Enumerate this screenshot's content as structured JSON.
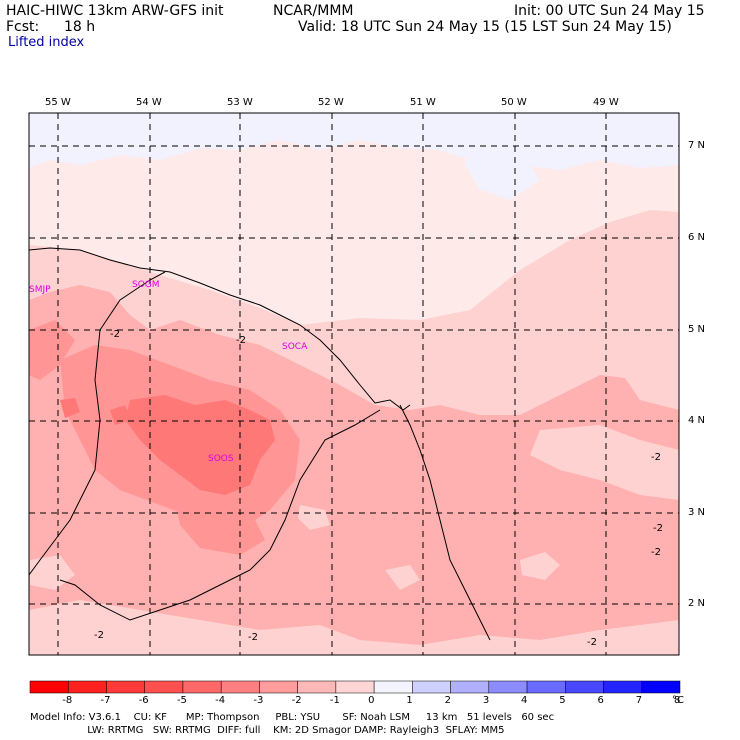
{
  "header": {
    "title_left": "HAIC-HIWC 13km ARW-GFS init",
    "title_center": "NCAR/MMM",
    "init": "Init: 00 UTC Sun 24 May 15",
    "fcst_label": "Fcst:",
    "fcst_value": "18 h",
    "valid": "Valid: 18 UTC Sun 24 May 15 (15 LST Sun 24 May 15)",
    "field": "Lifted index"
  },
  "map": {
    "lon_labels": [
      "55 W",
      "54 W",
      "53 W",
      "52 W",
      "51 W",
      "50 W",
      "49 W"
    ],
    "lat_labels": [
      "7 N",
      "6 N",
      "5 N",
      "4 N",
      "3 N",
      "2 N"
    ],
    "stations": [
      "SMJP",
      "SOGM",
      "SOCA",
      "SOOS"
    ],
    "contour_label": "-2",
    "colors": {
      "weak_pos": "#f2f2ff",
      "zero_to_neg1": "#ffeaea",
      "neg1_to_neg2": "#ffd2d2",
      "neg2_to_neg3": "#ffb0b0",
      "neg3_to_neg4": "#ff9595",
      "neg4_to_neg5": "#ff7878",
      "station": "#e000e0"
    }
  },
  "colorbar": {
    "ticks": [
      "-8",
      "-7",
      "-6",
      "-5",
      "-4",
      "-3",
      "-2",
      "-1",
      "0",
      "1",
      "2",
      "3",
      "4",
      "5",
      "6",
      "7",
      "8"
    ],
    "unit": "°C",
    "colors": [
      "#ff0000",
      "#ff2020",
      "#ff3a3a",
      "#ff5050",
      "#ff6868",
      "#ff8080",
      "#ff9c9c",
      "#ffb8b8",
      "#ffd4d4",
      "#f4f4ff",
      "#d0d0ff",
      "#b0b0ff",
      "#8c8cff",
      "#6a6aff",
      "#4848ff",
      "#2424ff",
      "#0000ff"
    ]
  },
  "footer": {
    "line1": "Model Info: V3.6.1    CU: KF      MP: Thompson     PBL: YSU       SF: Noah LSM     13 km   51 levels   60 sec",
    "line2": "                  LW: RRTMG   SW: RRTMG  DIFF: full    KM: 2D Smagor DAMP: Rayleigh3  SFLAY: MM5"
  }
}
